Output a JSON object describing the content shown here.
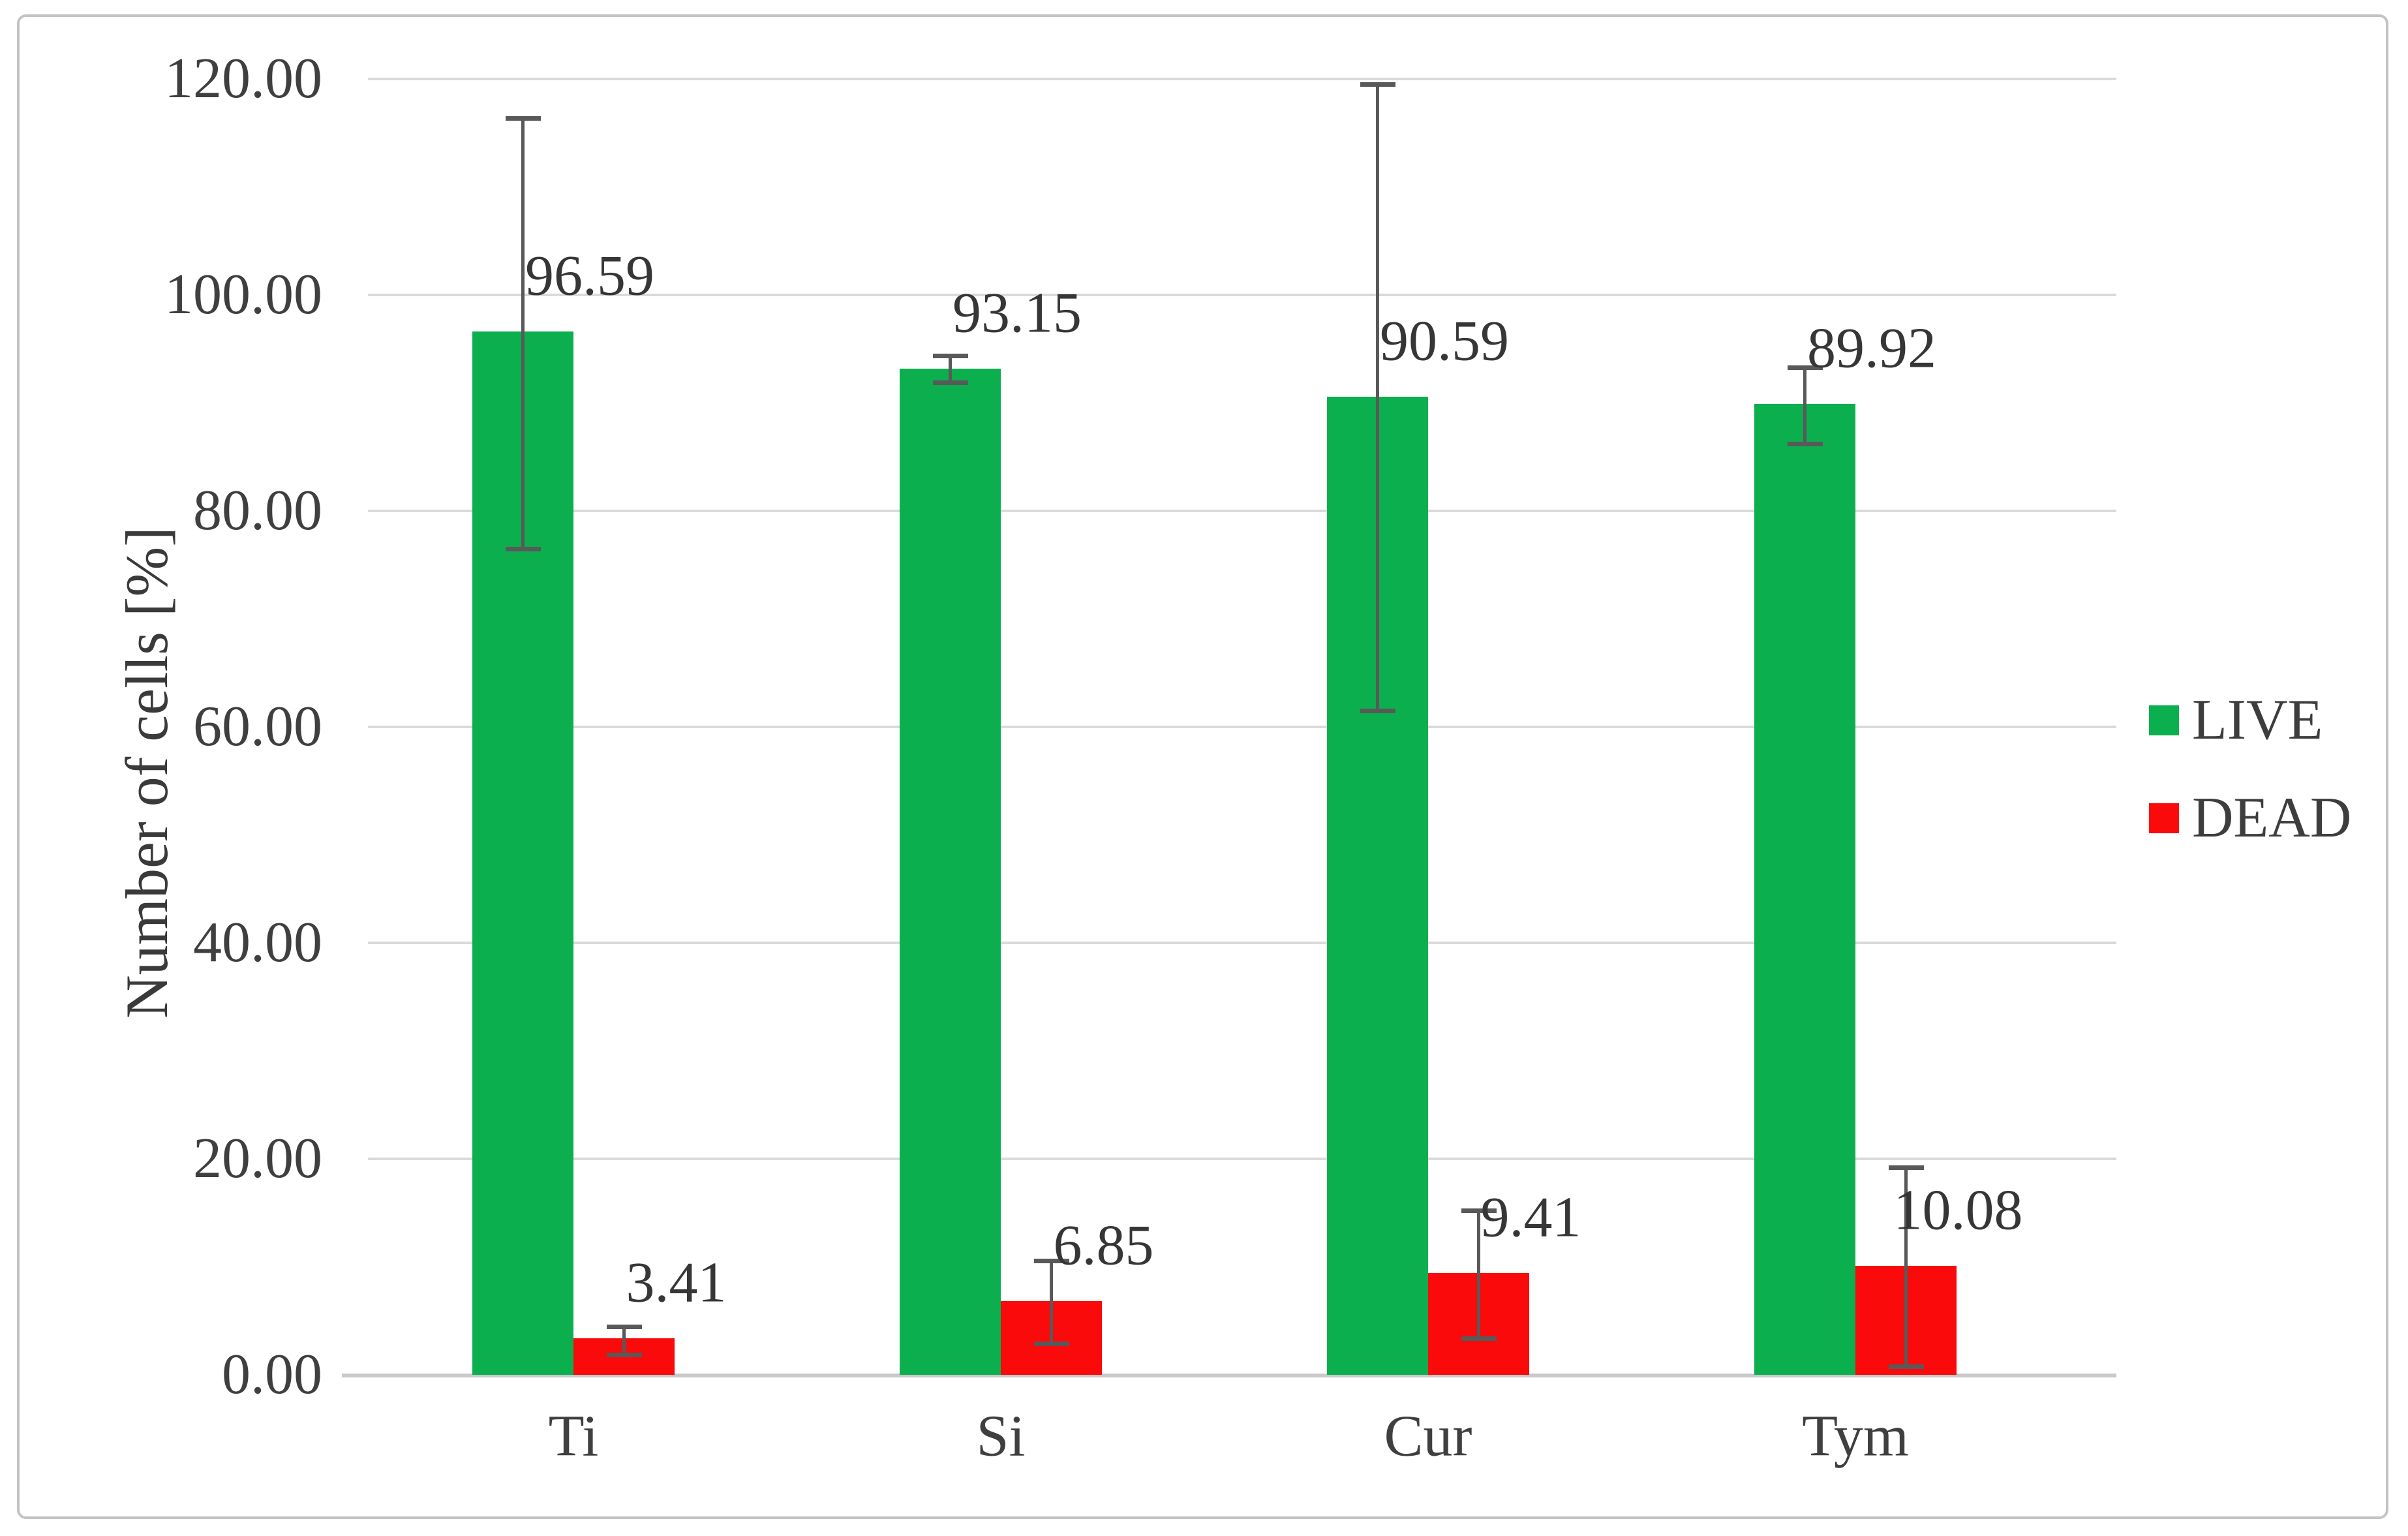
{
  "chart_data": {
    "type": "bar",
    "title": "",
    "categories": [
      "Ti",
      "Si",
      "Cur",
      "Tym"
    ],
    "series": [
      {
        "name": "LIVE",
        "color": "#0caf4e",
        "values": [
          96.59,
          93.15,
          90.59,
          89.92
        ],
        "data_labels": [
          "96.59",
          "93.15",
          "90.59",
          "89.92"
        ],
        "error_low": [
          76.5,
          91.9,
          61.5,
          86.2
        ],
        "error_high": [
          116.4,
          94.4,
          119.5,
          93.3
        ]
      },
      {
        "name": "DEAD",
        "color": "#fa0a0a",
        "values": [
          3.41,
          6.85,
          9.41,
          10.08
        ],
        "data_labels": [
          "3.41",
          "6.85",
          "9.41",
          "10.08"
        ],
        "error_low": [
          1.9,
          2.9,
          3.4,
          0.8
        ],
        "error_high": [
          4.5,
          10.6,
          15.2,
          19.2
        ]
      }
    ],
    "xlabel": "",
    "ylabel": "Number of cells [%]",
    "ylim": [
      0,
      120
    ],
    "yticks": [
      {
        "value": 0,
        "label": "0.00"
      },
      {
        "value": 20,
        "label": "20.00"
      },
      {
        "value": 40,
        "label": "40.00"
      },
      {
        "value": 60,
        "label": "60.00"
      },
      {
        "value": 80,
        "label": "80.00"
      },
      {
        "value": 100,
        "label": "100.00"
      },
      {
        "value": 120,
        "label": "120.00"
      }
    ],
    "grid": true,
    "legend_position": "right",
    "error_bars": true
  },
  "colors": {
    "gridline": "#dadada",
    "axis_baseline": "#c9c9c9",
    "error_bar": "#595959",
    "tick_text": "#3f3f3f",
    "label_text": "#363636",
    "frame_border": "#c3c3c3",
    "background": "#ffffff"
  }
}
